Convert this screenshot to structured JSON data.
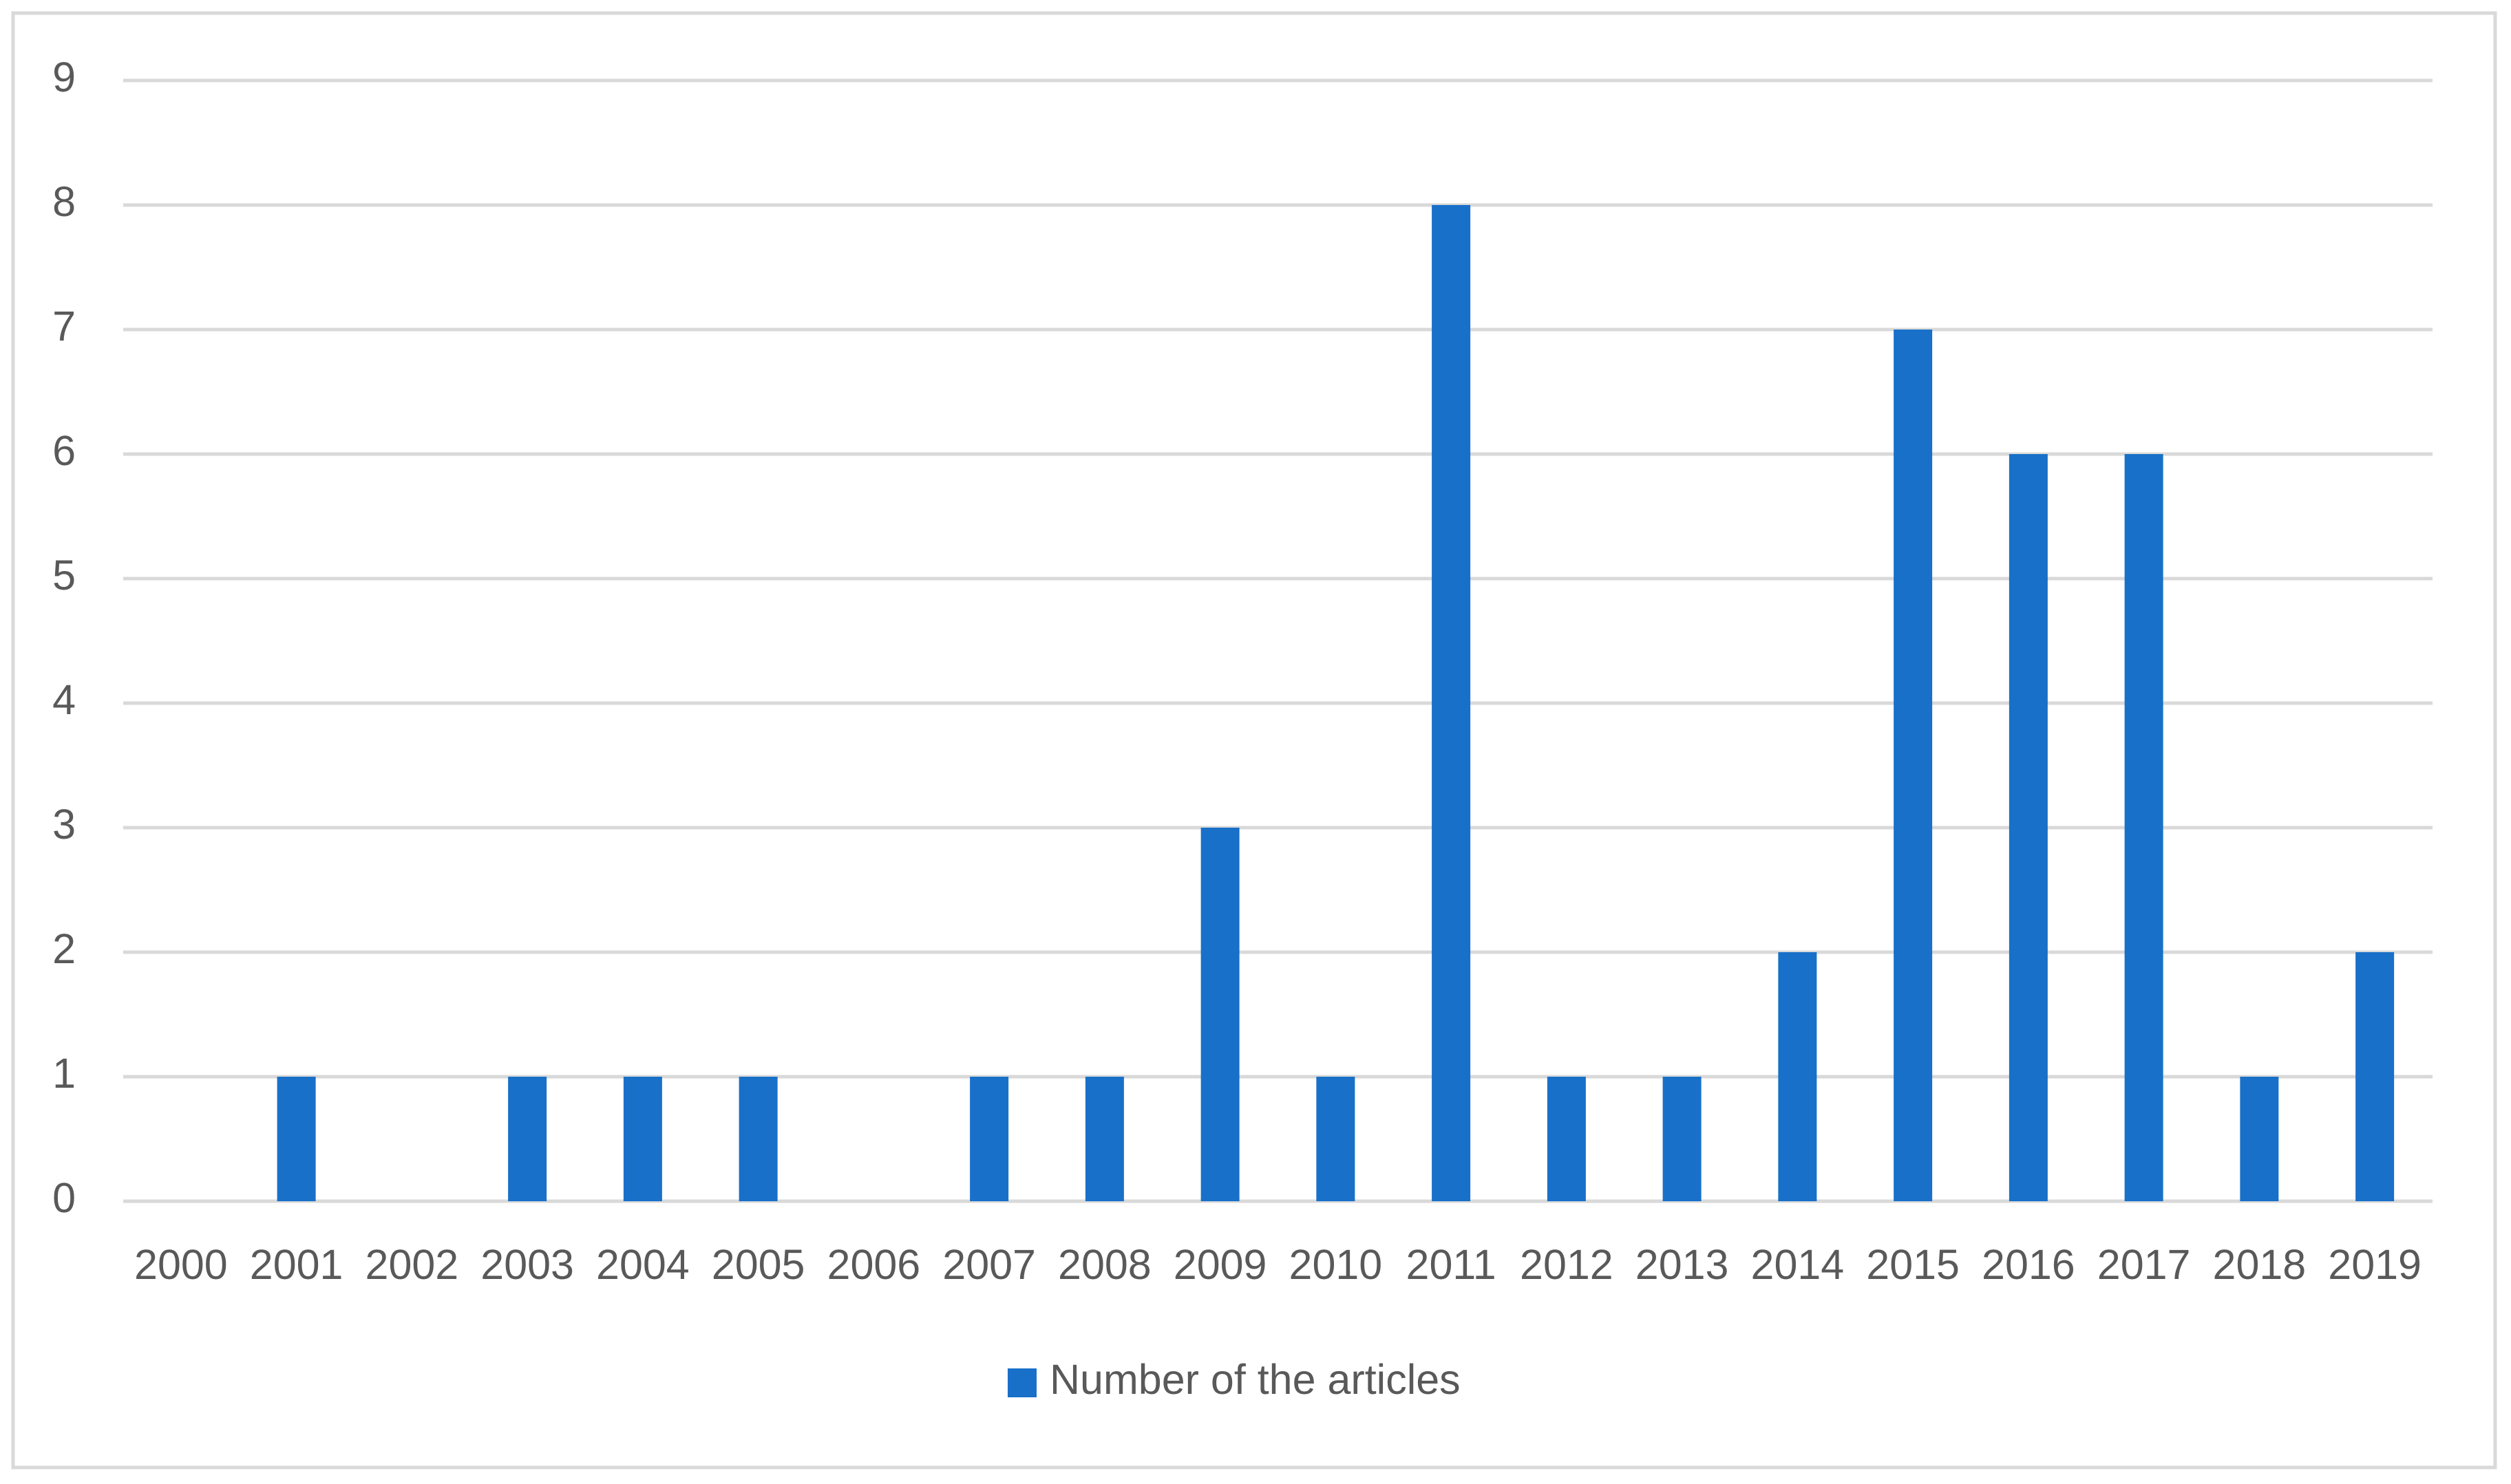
{
  "chart_data": {
    "type": "bar",
    "categories": [
      "2000",
      "2001",
      "2002",
      "2003",
      "2004",
      "2005",
      "2006",
      "2007",
      "2008",
      "2009",
      "2010",
      "2011",
      "2012",
      "2013",
      "2014",
      "2015",
      "2016",
      "2017",
      "2018",
      "2019"
    ],
    "series": [
      {
        "name": "Number of the articles",
        "color": "#1870c8",
        "values": [
          0,
          1,
          0,
          1,
          1,
          1,
          0,
          1,
          1,
          3,
          1,
          8,
          1,
          1,
          2,
          7,
          6,
          6,
          1,
          2
        ]
      }
    ],
    "ylim": [
      0,
      9
    ],
    "yticks": [
      0,
      1,
      2,
      3,
      4,
      5,
      6,
      7,
      8,
      9
    ],
    "grid": true,
    "legend": "bottom"
  }
}
